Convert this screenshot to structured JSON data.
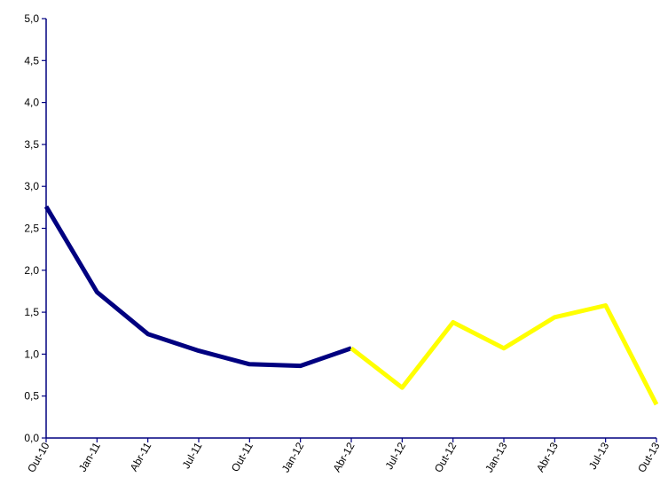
{
  "chart_data": {
    "type": "line",
    "title": "",
    "xlabel": "",
    "ylabel": "",
    "categories": [
      "Out-10",
      "Jan-11",
      "Abr-11",
      "Jul-11",
      "Out-11",
      "Jan-12",
      "Abr-12",
      "Jul-12",
      "Out-12",
      "Jan-13",
      "Abr-13",
      "Jul-13",
      "Out-13"
    ],
    "ylim": [
      0,
      5
    ],
    "yticks": [
      "0,0",
      "0,5",
      "1,0",
      "1,5",
      "2,0",
      "2,5",
      "3,0",
      "3,5",
      "4,0",
      "4,5",
      "5,0"
    ],
    "grid": false,
    "legend": "none",
    "series": [
      {
        "values": [
          2.76,
          1.74,
          1.24,
          1.04,
          0.88,
          0.86,
          1.07,
          null,
          null,
          null,
          null,
          null,
          null
        ],
        "color": "#000080"
      },
      {
        "values": [
          null,
          null,
          null,
          null,
          null,
          null,
          1.07,
          0.6,
          1.38,
          1.07,
          1.44,
          1.58,
          0.4
        ],
        "color": "#ffff00"
      }
    ],
    "axis_color": "#000080"
  }
}
